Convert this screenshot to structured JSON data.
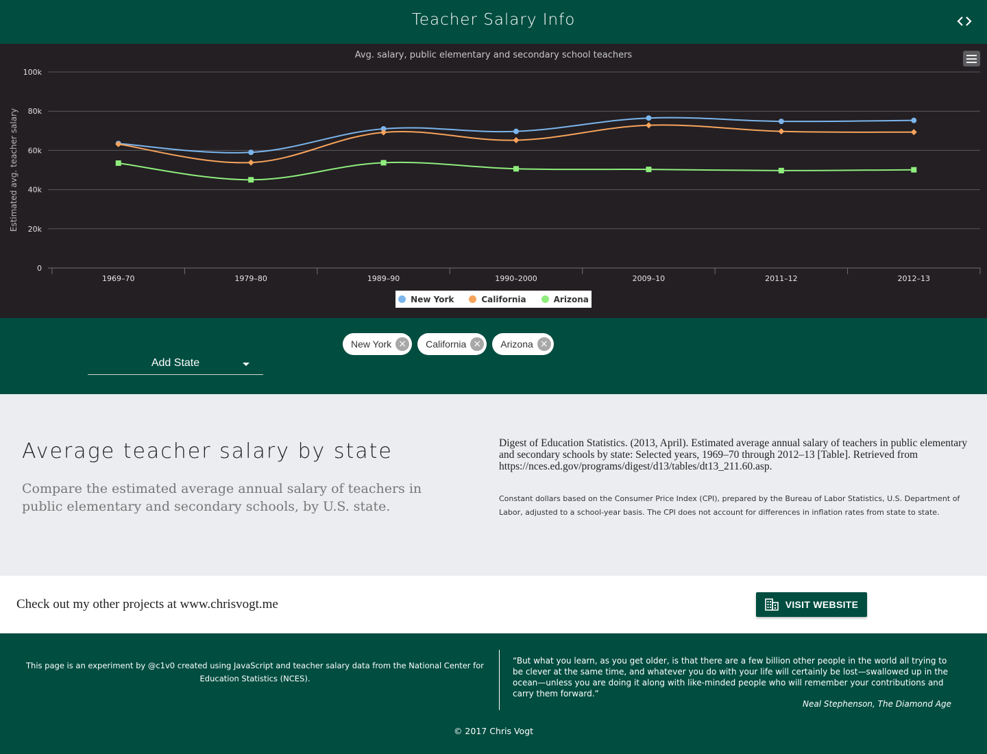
{
  "header": {
    "title": "Teacher Salary Info",
    "code_icon": "code-brackets-icon"
  },
  "chart_data": {
    "type": "line",
    "title": "Avg. salary, public elementary and secondary school teachers",
    "ylabel": "Estimated avg. teacher salary",
    "xlabel": "",
    "categories": [
      "1969–70",
      "1979–80",
      "1989–90",
      "1990–2000",
      "2009–10",
      "2011–12",
      "2012–13"
    ],
    "y_ticks": [
      "0",
      "20k",
      "40k",
      "60k",
      "80k",
      "100k"
    ],
    "ylim": [
      0,
      100000
    ],
    "grid": true,
    "legend_position": "bottom-center",
    "series": [
      {
        "name": "New York",
        "color": "#7cb5ec",
        "marker": "circle",
        "values": [
          63500,
          59000,
          71000,
          69700,
          76500,
          74800,
          75300
        ]
      },
      {
        "name": "California",
        "color": "#f7a35c",
        "marker": "diamond",
        "values": [
          63200,
          53800,
          69200,
          65200,
          72800,
          69700,
          69300
        ]
      },
      {
        "name": "Arizona",
        "color": "#90ed7d",
        "marker": "square",
        "values": [
          53500,
          45000,
          53700,
          50600,
          50300,
          49700,
          50100
        ]
      }
    ]
  },
  "controls": {
    "add_state_label": "Add State",
    "chips": [
      {
        "label": "New York"
      },
      {
        "label": "California"
      },
      {
        "label": "Arizona"
      }
    ],
    "chip_close_glyph": "×"
  },
  "info": {
    "heading": "Average teacher salary by state",
    "subheading": "Compare the estimated average annual salary of teachers in public elementary and secondary schools, by U.S. state.",
    "citation": "Digest of Education Statistics. (2013, April). Estimated average annual salary of teachers in public elementary and secondary schools by state: Selected years, 1969–70 through 2012–13 [Table]. Retrieved from https://nces.ed.gov/programs/digest/d13/tables/dt13_211.60.asp.",
    "note": "Constant dollars based on the Consumer Price Index (CPI), prepared by the Bureau of Labor Statistics, U.S. Department of Labor, adjusted to a school-year basis. The CPI does not account for differences in inflation rates from state to state."
  },
  "promo": {
    "text": "Check out my other projects at www.chrisvogt.me",
    "button_label": "VISIT WEBSITE",
    "button_icon": "building-icon"
  },
  "footer": {
    "about": "This page is an experiment by @c1v0 created using JavaScript and teacher salary data from the National Center for Education Statistics (NCES).",
    "quote": "“But what you learn, as you get older, is that there are a few billion other people in the world all trying to be clever at the same time, and whatever you do with your life will certainly be lost—swallowed up in the ocean—unless you are doing it along with like-minded people who will remember your contributions and carry them forward.”",
    "quote_author": "Neal Stephenson, The Diamond Age",
    "copyright": "© 2017 Chris Vogt"
  }
}
